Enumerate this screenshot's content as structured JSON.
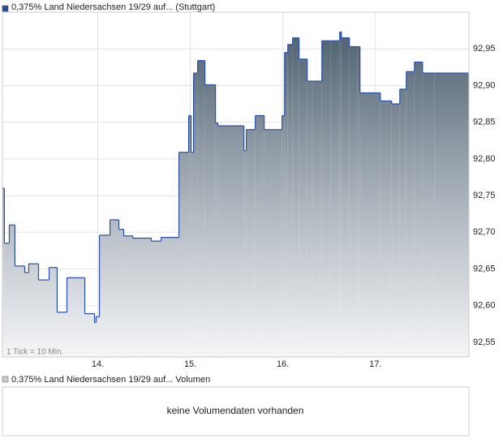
{
  "chart_data": {
    "type": "step-area",
    "legend": "0,375% Land Niedersachsen 19/29 auf... (Stuttgart)",
    "note": "1 Tick = 10 Min.",
    "color": "#2a4fa8",
    "x": [
      12.974,
      12.991,
      13.044,
      13.105,
      13.211,
      13.254,
      13.36,
      13.474,
      13.561,
      13.667,
      13.86,
      13.965,
      13.982,
      14.018,
      14.132,
      14.228,
      14.281,
      14.377,
      14.579,
      14.684,
      14.877,
      14.982,
      15.009,
      15.035,
      15.079,
      15.158,
      15.272,
      15.298,
      15.579,
      15.605,
      15.702,
      15.798,
      15.991,
      16.018,
      16.053,
      16.105,
      16.175,
      16.263,
      16.316,
      16.421,
      16.518,
      16.614,
      16.632,
      16.719,
      16.807,
      16.833,
      17.053,
      17.175,
      17.263,
      17.333,
      17.421,
      17.509,
      17.64
    ],
    "values": [
      92.76,
      92.685,
      92.71,
      92.654,
      92.645,
      92.657,
      92.635,
      92.652,
      92.591,
      92.638,
      92.589,
      92.577,
      92.585,
      92.696,
      92.717,
      92.704,
      92.695,
      92.692,
      92.688,
      92.693,
      92.809,
      92.859,
      92.809,
      92.917,
      92.934,
      92.901,
      92.849,
      92.845,
      92.811,
      92.84,
      92.859,
      92.84,
      92.859,
      92.945,
      92.956,
      92.965,
      92.936,
      92.906,
      92.906,
      92.961,
      92.961,
      92.973,
      92.965,
      92.953,
      92.953,
      92.89,
      92.879,
      92.875,
      92.895,
      92.919,
      92.932,
      92.917,
      92.917
    ],
    "xlim": [
      12.97,
      18.01
    ],
    "xticks": [
      {
        "value": 14,
        "label": "14."
      },
      {
        "value": 15,
        "label": "15."
      },
      {
        "value": 16,
        "label": "16."
      },
      {
        "value": 17,
        "label": "17."
      }
    ],
    "ylim": [
      92.53,
      93.0
    ],
    "yticks": [
      {
        "value": 92.55,
        "label": "92,55"
      },
      {
        "value": 92.6,
        "label": "92,60"
      },
      {
        "value": 92.65,
        "label": "92,65"
      },
      {
        "value": 92.7,
        "label": "92,70"
      },
      {
        "value": 92.75,
        "label": "92,75"
      },
      {
        "value": 92.8,
        "label": "92,80"
      },
      {
        "value": 92.85,
        "label": "92,85"
      },
      {
        "value": 92.9,
        "label": "92,90"
      },
      {
        "value": 92.95,
        "label": "92,95"
      }
    ],
    "grid": true
  },
  "volume_panel": {
    "legend": "0,375% Land Niedersachsen 19/29 auf... Volumen",
    "message": "keine Volumendaten vorhanden"
  }
}
